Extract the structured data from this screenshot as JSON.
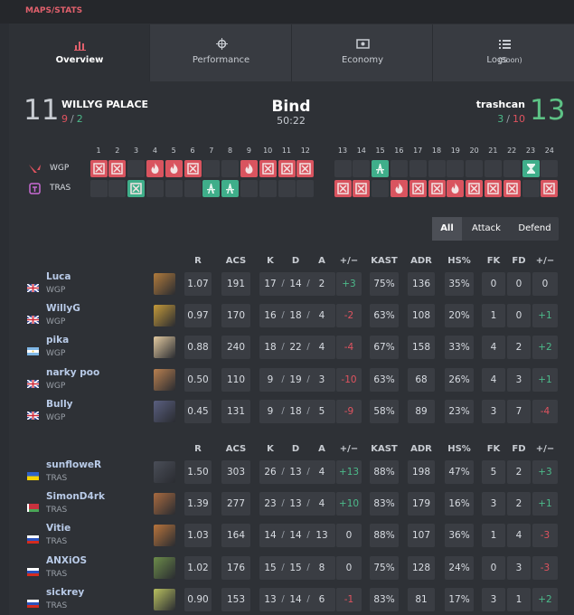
{
  "header": {
    "title": "MAPS/STATS"
  },
  "tabs": [
    {
      "label": "Overview",
      "active": true
    },
    {
      "label": "Performance"
    },
    {
      "label": "Economy"
    },
    {
      "label": "Logs",
      "note": "(Soon)"
    }
  ],
  "match": {
    "map": "Bind",
    "duration": "50:22",
    "separator": "/",
    "teams": [
      {
        "name": "WILLYG PALACE",
        "score": 11,
        "halves": [
          9,
          2
        ],
        "sides": [
          "attack",
          "defense"
        ],
        "winner": false
      },
      {
        "name": "trashcan",
        "score": 13,
        "halves": [
          3,
          10
        ],
        "sides": [
          "defense",
          "attack"
        ],
        "winner": true
      }
    ]
  },
  "rounds": {
    "numbers": [
      1,
      2,
      3,
      4,
      5,
      6,
      7,
      8,
      9,
      10,
      11,
      12,
      13,
      14,
      15,
      16,
      17,
      18,
      19,
      20,
      21,
      22,
      23,
      24
    ],
    "teams": [
      {
        "name": "WGP",
        "results": [
          "elim",
          "elim",
          null,
          "spike",
          "spike",
          "elim",
          null,
          null,
          "spike",
          "elim",
          "elim",
          "elim",
          null,
          null,
          "defuse",
          null,
          null,
          null,
          null,
          null,
          null,
          null,
          "time",
          null
        ]
      },
      {
        "name": "TRAS",
        "results": [
          null,
          null,
          "elim",
          null,
          null,
          null,
          "defuse",
          "defuse",
          null,
          null,
          null,
          null,
          "elim",
          "elim",
          null,
          "spike",
          "elim",
          "elim",
          "spike",
          "elim",
          "elim",
          "elim",
          null,
          "elim"
        ]
      }
    ]
  },
  "filters": [
    {
      "label": "All",
      "active": true
    },
    {
      "label": "Attack"
    },
    {
      "label": "Defend"
    }
  ],
  "stat_headers": [
    "R",
    "ACS",
    "K",
    "D",
    "A",
    "+/−",
    "KAST",
    "ADR",
    "HS%",
    "FK",
    "FD",
    "+/−"
  ],
  "kda_separator": "/",
  "teams_stats": [
    {
      "players": [
        {
          "name": "Luca",
          "team": "WGP",
          "flag": "gb",
          "stats": [
            "1.07",
            "191",
            "17",
            "14",
            "2",
            "+3",
            "75%",
            "136",
            "35%",
            "0",
            "0",
            "0"
          ]
        },
        {
          "name": "WillyG",
          "team": "WGP",
          "flag": "gb",
          "stats": [
            "0.97",
            "170",
            "16",
            "18",
            "4",
            "-2",
            "63%",
            "108",
            "20%",
            "1",
            "0",
            "+1"
          ]
        },
        {
          "name": "pika",
          "team": "WGP",
          "flag": "ar",
          "stats": [
            "0.88",
            "240",
            "18",
            "22",
            "4",
            "-4",
            "67%",
            "158",
            "33%",
            "4",
            "2",
            "+2"
          ]
        },
        {
          "name": "narky poo",
          "team": "WGP",
          "flag": "gb",
          "stats": [
            "0.50",
            "110",
            "9",
            "19",
            "3",
            "-10",
            "63%",
            "68",
            "26%",
            "4",
            "3",
            "+1"
          ]
        },
        {
          "name": "Bully",
          "team": "WGP",
          "flag": "gb",
          "stats": [
            "0.45",
            "131",
            "9",
            "18",
            "5",
            "-9",
            "58%",
            "89",
            "23%",
            "3",
            "7",
            "-4"
          ]
        }
      ]
    },
    {
      "players": [
        {
          "name": "sunfloweR",
          "team": "TRAS",
          "flag": "ua",
          "stats": [
            "1.50",
            "303",
            "26",
            "13",
            "4",
            "+13",
            "88%",
            "198",
            "47%",
            "5",
            "2",
            "+3"
          ]
        },
        {
          "name": "SimonD4rk",
          "team": "TRAS",
          "flag": "by",
          "stats": [
            "1.39",
            "277",
            "23",
            "13",
            "4",
            "+10",
            "83%",
            "179",
            "16%",
            "3",
            "2",
            "+1"
          ]
        },
        {
          "name": "Vitie",
          "team": "TRAS",
          "flag": "ru",
          "stats": [
            "1.03",
            "164",
            "14",
            "14",
            "13",
            "0",
            "88%",
            "107",
            "36%",
            "1",
            "4",
            "-3"
          ]
        },
        {
          "name": "ANXiOS",
          "team": "TRAS",
          "flag": "ru",
          "stats": [
            "1.02",
            "176",
            "15",
            "15",
            "8",
            "0",
            "75%",
            "128",
            "24%",
            "0",
            "3",
            "-3"
          ]
        },
        {
          "name": "sickrey",
          "team": "TRAS",
          "flag": "ru",
          "stats": [
            "0.90",
            "153",
            "13",
            "14",
            "6",
            "-1",
            "83%",
            "81",
            "17%",
            "3",
            "1",
            "+2"
          ]
        }
      ]
    }
  ]
}
